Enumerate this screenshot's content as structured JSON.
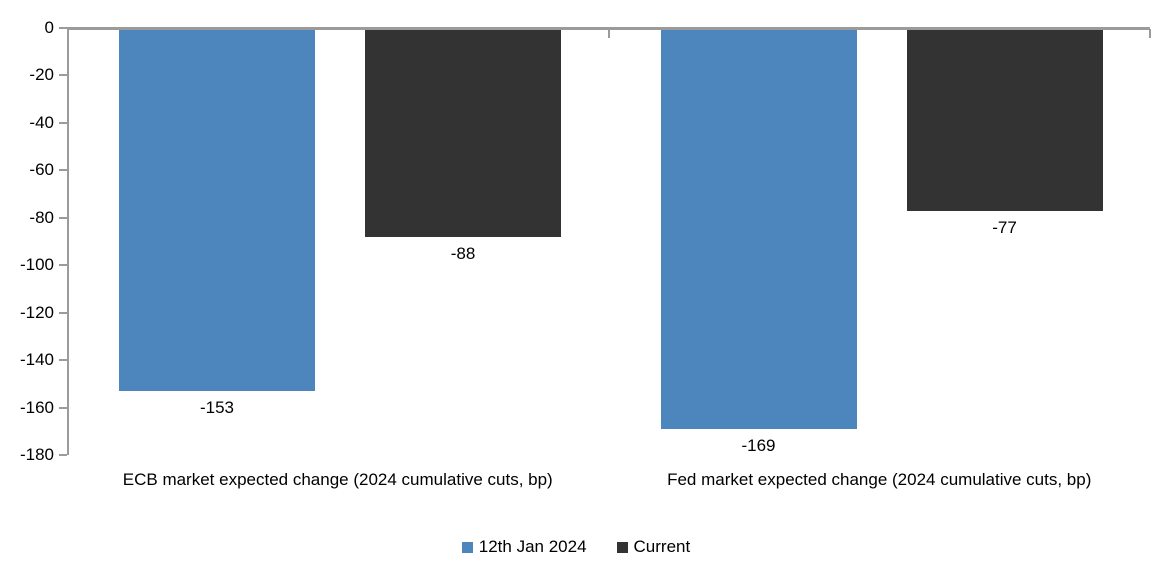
{
  "chart_data": {
    "type": "bar",
    "title": "",
    "xlabel": "",
    "ylabel": "",
    "categories": [
      "ECB market expected change (2024 cumulative cuts, bp)",
      "Fed market expected change (2024 cumulative cuts, bp)"
    ],
    "series": [
      {
        "name": "12th Jan 2024",
        "color": "#4d86bd",
        "values": [
          -153,
          -169
        ]
      },
      {
        "name": "Current",
        "color": "#333333",
        "values": [
          -88,
          -77
        ]
      }
    ],
    "data_labels": [
      [
        "-153",
        "-169"
      ],
      [
        "-88",
        "-77"
      ]
    ],
    "ylim": [
      -180,
      0
    ],
    "y_ticks": [
      "0",
      "-20",
      "-40",
      "-60",
      "-80",
      "-100",
      "-120",
      "-140",
      "-160",
      "-180"
    ],
    "y_tick_values": [
      0,
      -20,
      -40,
      -60,
      -80,
      -100,
      -120,
      -140,
      -160,
      -180
    ],
    "grid": false,
    "legend_position": "bottom",
    "colors": {
      "axis": "#9b9b9b",
      "text": "#000000",
      "background": "#ffffff"
    }
  }
}
